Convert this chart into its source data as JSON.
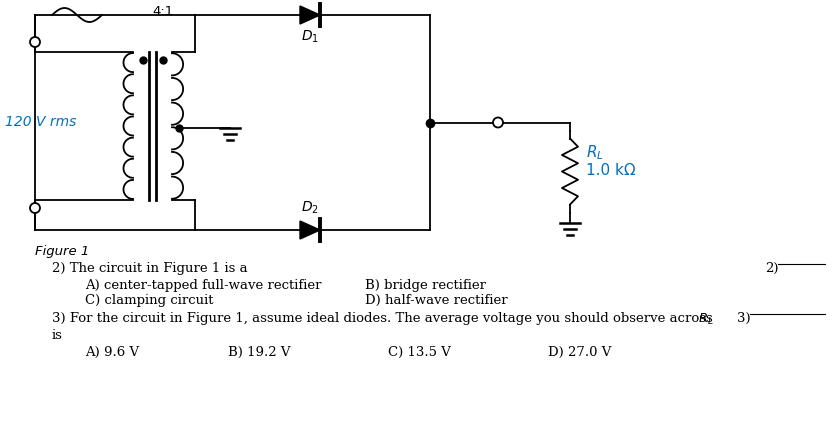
{
  "figure_label": "Figure 1",
  "ratio_label": "4:1",
  "voltage_label": "120 V rms",
  "q2_text": "2) The circuit in Figure 1 is a",
  "q2_a": "A) center-tapped full-wave rectifier",
  "q2_b": "B) bridge rectifier",
  "q2_c": "C) clamping circuit",
  "q2_d": "D) half-wave rectifier",
  "q2_num": "2)",
  "q3_text": "3) For the circuit in Figure 1, assume ideal diodes. The average voltage you should observe across ",
  "q3_is": "is",
  "q3_a": "A) 9.6 V",
  "q3_b": "B) 19.2 V",
  "q3_c": "C) 13.5 V",
  "q3_d": "D) 27.0 V",
  "background": "#ffffff",
  "text_color": "#000000",
  "blue_color": "#0070C0",
  "line_color": "#000000"
}
